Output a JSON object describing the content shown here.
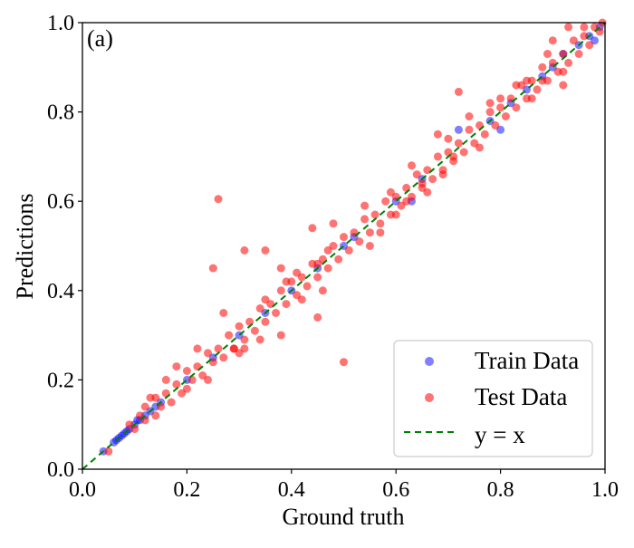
{
  "chart_data": {
    "type": "scatter",
    "panel_label": "(a)",
    "xlabel": "Ground truth",
    "ylabel": "Predictions",
    "xlim": [
      0.0,
      1.0
    ],
    "ylim": [
      0.0,
      1.0
    ],
    "xticks": [
      "0.0",
      "0.2",
      "0.4",
      "0.6",
      "0.8",
      "1.0"
    ],
    "yticks": [
      "0.0",
      "0.2",
      "0.4",
      "0.6",
      "0.8",
      "1.0"
    ],
    "grid": false,
    "legend_position": "lower-right",
    "series": [
      {
        "name": "Train Data",
        "color": "#0000ff",
        "alpha": 0.5,
        "marker": "circle",
        "points": [
          [
            0.04,
            0.04
          ],
          [
            0.06,
            0.06
          ],
          [
            0.065,
            0.065
          ],
          [
            0.07,
            0.07
          ],
          [
            0.075,
            0.075
          ],
          [
            0.08,
            0.08
          ],
          [
            0.085,
            0.085
          ],
          [
            0.09,
            0.09
          ],
          [
            0.1,
            0.1
          ],
          [
            0.105,
            0.11
          ],
          [
            0.11,
            0.11
          ],
          [
            0.12,
            0.12
          ],
          [
            0.13,
            0.13
          ],
          [
            0.14,
            0.14
          ],
          [
            0.15,
            0.15
          ],
          [
            0.2,
            0.2
          ],
          [
            0.25,
            0.25
          ],
          [
            0.3,
            0.3
          ],
          [
            0.35,
            0.35
          ],
          [
            0.4,
            0.4
          ],
          [
            0.45,
            0.45
          ],
          [
            0.5,
            0.5
          ],
          [
            0.52,
            0.52
          ],
          [
            0.6,
            0.6
          ],
          [
            0.63,
            0.6
          ],
          [
            0.65,
            0.65
          ],
          [
            0.72,
            0.76
          ],
          [
            0.78,
            0.78
          ],
          [
            0.8,
            0.76
          ],
          [
            0.82,
            0.82
          ],
          [
            0.85,
            0.85
          ],
          [
            0.88,
            0.88
          ],
          [
            0.9,
            0.9
          ],
          [
            0.92,
            0.93
          ],
          [
            0.95,
            0.95
          ],
          [
            0.97,
            0.97
          ],
          [
            0.99,
            0.99
          ],
          [
            0.98,
            0.96
          ]
        ]
      },
      {
        "name": "Test Data",
        "color": "#ff0000",
        "alpha": 0.55,
        "marker": "circle",
        "points": [
          [
            0.05,
            0.04
          ],
          [
            0.09,
            0.1
          ],
          [
            0.1,
            0.09
          ],
          [
            0.11,
            0.12
          ],
          [
            0.12,
            0.11
          ],
          [
            0.13,
            0.16
          ],
          [
            0.14,
            0.12
          ],
          [
            0.15,
            0.14
          ],
          [
            0.16,
            0.17
          ],
          [
            0.17,
            0.15
          ],
          [
            0.18,
            0.19
          ],
          [
            0.19,
            0.17
          ],
          [
            0.2,
            0.22
          ],
          [
            0.21,
            0.2
          ],
          [
            0.22,
            0.23
          ],
          [
            0.23,
            0.21
          ],
          [
            0.24,
            0.26
          ],
          [
            0.25,
            0.24
          ],
          [
            0.26,
            0.27
          ],
          [
            0.27,
            0.25
          ],
          [
            0.28,
            0.3
          ],
          [
            0.29,
            0.27
          ],
          [
            0.3,
            0.32
          ],
          [
            0.31,
            0.29
          ],
          [
            0.32,
            0.33
          ],
          [
            0.33,
            0.31
          ],
          [
            0.34,
            0.36
          ],
          [
            0.35,
            0.33
          ],
          [
            0.36,
            0.37
          ],
          [
            0.37,
            0.35
          ],
          [
            0.38,
            0.4
          ],
          [
            0.39,
            0.37
          ],
          [
            0.4,
            0.42
          ],
          [
            0.41,
            0.39
          ],
          [
            0.42,
            0.43
          ],
          [
            0.43,
            0.41
          ],
          [
            0.44,
            0.46
          ],
          [
            0.45,
            0.43
          ],
          [
            0.46,
            0.47
          ],
          [
            0.47,
            0.45
          ],
          [
            0.48,
            0.5
          ],
          [
            0.49,
            0.47
          ],
          [
            0.5,
            0.52
          ],
          [
            0.51,
            0.49
          ],
          [
            0.52,
            0.53
          ],
          [
            0.53,
            0.51
          ],
          [
            0.54,
            0.56
          ],
          [
            0.55,
            0.53
          ],
          [
            0.56,
            0.57
          ],
          [
            0.57,
            0.55
          ],
          [
            0.58,
            0.6
          ],
          [
            0.59,
            0.57
          ],
          [
            0.6,
            0.61
          ],
          [
            0.61,
            0.59
          ],
          [
            0.62,
            0.63
          ],
          [
            0.63,
            0.61
          ],
          [
            0.64,
            0.66
          ],
          [
            0.65,
            0.63
          ],
          [
            0.66,
            0.67
          ],
          [
            0.67,
            0.65
          ],
          [
            0.68,
            0.7
          ],
          [
            0.69,
            0.67
          ],
          [
            0.7,
            0.71
          ],
          [
            0.71,
            0.69
          ],
          [
            0.72,
            0.73
          ],
          [
            0.73,
            0.71
          ],
          [
            0.74,
            0.76
          ],
          [
            0.75,
            0.73
          ],
          [
            0.76,
            0.77
          ],
          [
            0.77,
            0.75
          ],
          [
            0.78,
            0.8
          ],
          [
            0.79,
            0.77
          ],
          [
            0.8,
            0.81
          ],
          [
            0.81,
            0.79
          ],
          [
            0.82,
            0.83
          ],
          [
            0.83,
            0.81
          ],
          [
            0.84,
            0.86
          ],
          [
            0.85,
            0.83
          ],
          [
            0.86,
            0.87
          ],
          [
            0.87,
            0.85
          ],
          [
            0.88,
            0.9
          ],
          [
            0.89,
            0.87
          ],
          [
            0.9,
            0.91
          ],
          [
            0.91,
            0.89
          ],
          [
            0.92,
            0.93
          ],
          [
            0.93,
            0.91
          ],
          [
            0.94,
            0.96
          ],
          [
            0.95,
            0.93
          ],
          [
            0.96,
            0.97
          ],
          [
            0.97,
            0.95
          ],
          [
            0.98,
            0.99
          ],
          [
            0.99,
            0.98
          ],
          [
            0.995,
            1.0
          ],
          [
            0.93,
            0.99
          ],
          [
            0.9,
            0.96
          ],
          [
            0.26,
            0.605
          ],
          [
            0.72,
            0.845
          ],
          [
            0.5,
            0.24
          ],
          [
            0.44,
            0.54
          ],
          [
            0.35,
            0.49
          ],
          [
            0.31,
            0.49
          ],
          [
            0.25,
            0.45
          ],
          [
            0.45,
            0.34
          ],
          [
            0.38,
            0.3
          ],
          [
            0.27,
            0.35
          ],
          [
            0.29,
            0.27
          ],
          [
            0.31,
            0.27
          ],
          [
            0.3,
            0.26
          ],
          [
            0.34,
            0.29
          ],
          [
            0.35,
            0.38
          ],
          [
            0.42,
            0.38
          ],
          [
            0.47,
            0.49
          ],
          [
            0.55,
            0.5
          ],
          [
            0.6,
            0.57
          ],
          [
            0.59,
            0.62
          ],
          [
            0.62,
            0.6
          ],
          [
            0.65,
            0.64
          ],
          [
            0.69,
            0.66
          ],
          [
            0.68,
            0.75
          ],
          [
            0.71,
            0.7
          ],
          [
            0.74,
            0.79
          ],
          [
            0.8,
            0.83
          ],
          [
            0.83,
            0.86
          ],
          [
            0.85,
            0.87
          ],
          [
            0.88,
            0.87
          ],
          [
            0.92,
            0.86
          ],
          [
            0.96,
            0.99
          ],
          [
            0.18,
            0.23
          ],
          [
            0.16,
            0.2
          ],
          [
            0.2,
            0.18
          ],
          [
            0.22,
            0.27
          ],
          [
            0.24,
            0.2
          ],
          [
            0.14,
            0.16
          ],
          [
            0.12,
            0.14
          ],
          [
            0.38,
            0.45
          ],
          [
            0.48,
            0.55
          ],
          [
            0.41,
            0.44
          ],
          [
            0.46,
            0.4
          ],
          [
            0.54,
            0.59
          ],
          [
            0.57,
            0.53
          ],
          [
            0.63,
            0.68
          ],
          [
            0.66,
            0.62
          ],
          [
            0.7,
            0.74
          ],
          [
            0.76,
            0.72
          ],
          [
            0.78,
            0.82
          ],
          [
            0.86,
            0.83
          ],
          [
            0.89,
            0.93
          ],
          [
            0.92,
            0.89
          ],
          [
            0.39,
            0.42
          ],
          [
            0.45,
            0.46
          ]
        ]
      }
    ],
    "reference_line": {
      "name": "y = x",
      "color": "#008000",
      "style": "dashed",
      "from": [
        0.0,
        0.0
      ],
      "to": [
        1.0,
        1.0
      ]
    }
  }
}
